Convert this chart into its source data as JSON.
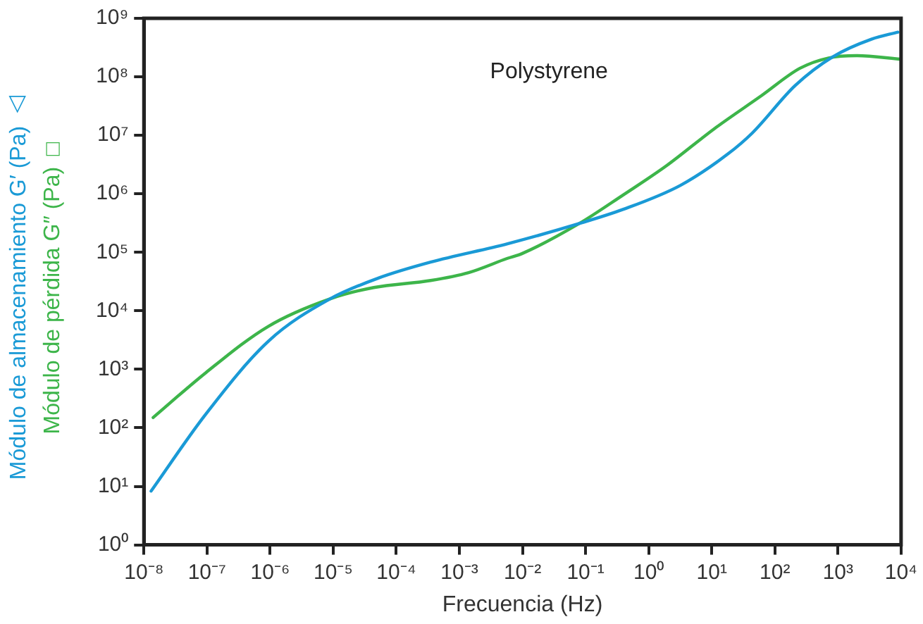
{
  "chart_data": {
    "type": "line",
    "title": "Polystyrene",
    "xlabel": "Frecuencia (Hz)",
    "log": "xy",
    "grid": false,
    "legend": "left",
    "marker": "none",
    "line_style": "solid",
    "xlim": [
      1e-08,
      10000
    ],
    "xticks": [
      {
        "value": 1e-08,
        "label": "10⁻⁸"
      },
      {
        "value": 1e-07,
        "label": "10⁻⁷"
      },
      {
        "value": 1e-06,
        "label": "10⁻⁶"
      },
      {
        "value": 1e-05,
        "label": "10⁻⁵"
      },
      {
        "value": 0.0001,
        "label": "10⁻⁴"
      },
      {
        "value": 0.001,
        "label": "10⁻³"
      },
      {
        "value": 0.01,
        "label": "10⁻²"
      },
      {
        "value": 0.1,
        "label": "10⁻¹"
      },
      {
        "value": 1,
        "label": "10⁰"
      },
      {
        "value": 10,
        "label": "10¹"
      },
      {
        "value": 100,
        "label": "10²"
      },
      {
        "value": 1000,
        "label": "10³"
      },
      {
        "value": 10000,
        "label": "10⁴"
      }
    ],
    "ylim": [
      1,
      1000000000.0
    ],
    "yticks": [
      {
        "value": 1,
        "label": "10⁰"
      },
      {
        "value": 10,
        "label": "10¹"
      },
      {
        "value": 100,
        "label": "10²"
      },
      {
        "value": 1000,
        "label": "10³"
      },
      {
        "value": 10000,
        "label": "10⁴"
      },
      {
        "value": 100000,
        "label": "10⁵"
      },
      {
        "value": 1000000,
        "label": "10⁶"
      },
      {
        "value": 10000000,
        "label": "10⁷"
      },
      {
        "value": 100000000,
        "label": "10⁸"
      },
      {
        "value": 1000000000,
        "label": "10⁹"
      }
    ],
    "series": [
      {
        "name": "Módulo de almacenamiento G′ (Pa) △",
        "color": "#1a9ad6",
        "x": [
          1.3e-08,
          9.5e-08,
          9.3e-07,
          8.9e-06,
          5.1e-05,
          0.00035,
          0.0058,
          0.079,
          0.39,
          3.2,
          18,
          44,
          210,
          830,
          3400,
          8900
        ],
        "values": [
          8.3,
          170,
          3000,
          16000,
          36000,
          68000,
          140000,
          310000,
          540000,
          1400000,
          4800000,
          11000000,
          71000000,
          220000000,
          440000000,
          580000000
        ]
      },
      {
        "name": "Módulo de pérdida G″ (Pa) □",
        "color": "#3db54a",
        "x": [
          1.4e-08,
          9.5e-08,
          9.3e-07,
          8.9e-06,
          4.4e-05,
          0.00035,
          0.0014,
          0.0058,
          0.0098,
          0.079,
          0.39,
          1.9,
          11,
          62,
          250,
          710,
          2000,
          9800
        ],
        "values": [
          150,
          870,
          5400,
          16000,
          25000,
          33000,
          45000,
          79000,
          95000,
          310000,
          950000,
          3000000,
          13000000,
          48000000,
          140000000,
          210000000,
          230000000,
          200000000
        ]
      }
    ]
  }
}
